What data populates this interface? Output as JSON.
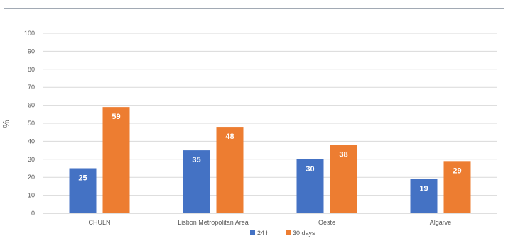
{
  "chart_data": {
    "type": "bar",
    "title": "",
    "xlabel": "",
    "ylabel": "%",
    "ylim": [
      0,
      100
    ],
    "yticks": [
      0,
      10,
      20,
      30,
      40,
      50,
      60,
      70,
      80,
      90,
      100
    ],
    "grid": true,
    "legend_position": "bottom",
    "categories": [
      "CHULN",
      "Lisbon Metropolitan Area",
      "Oeste",
      "Algarve"
    ],
    "series": [
      {
        "name": "24 h",
        "color": "#4472C4",
        "values": [
          25,
          35,
          30,
          19
        ]
      },
      {
        "name": "30 days",
        "color": "#ED7D31",
        "values": [
          59,
          48,
          38,
          29
        ]
      }
    ]
  }
}
